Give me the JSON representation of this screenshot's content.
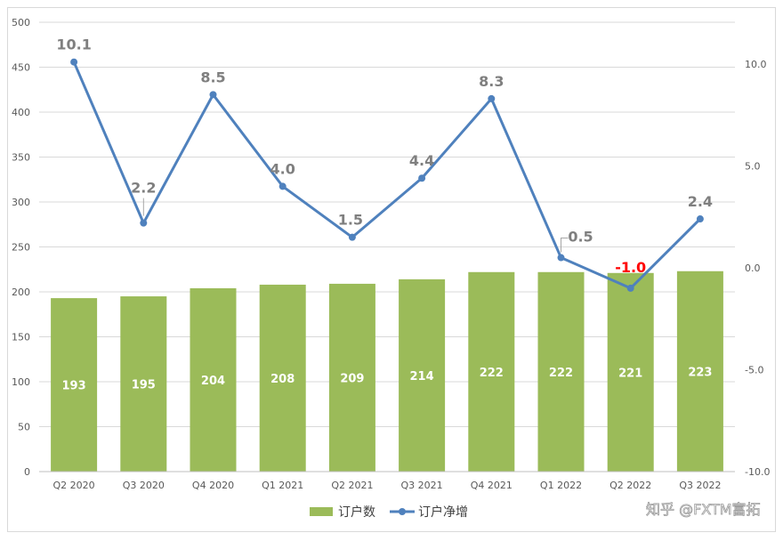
{
  "chart_data": {
    "type": "bar+line",
    "categories": [
      "Q2 2020",
      "Q3 2020",
      "Q4 2020",
      "Q1 2021",
      "Q2 2021",
      "Q3 2021",
      "Q4 2021",
      "Q1 2022",
      "Q2 2022",
      "Q3 2022"
    ],
    "series": [
      {
        "name": "订户数",
        "type": "bar",
        "axis": "left",
        "color": "#9bbb59",
        "values": [
          193,
          195,
          204,
          208,
          209,
          214,
          222,
          222,
          221,
          223
        ],
        "labels": [
          "193",
          "195",
          "204",
          "208",
          "209",
          "214",
          "222",
          "222",
          "221",
          "223"
        ]
      },
      {
        "name": "订户净增",
        "type": "line",
        "axis": "right",
        "color": "#4f81bd",
        "values": [
          10.1,
          2.2,
          8.5,
          4.0,
          1.5,
          4.4,
          8.3,
          0.5,
          -1.0,
          2.4
        ],
        "labels": [
          "10.1",
          "2.2",
          "8.5",
          "4.0",
          "1.5",
          "4.4",
          "8.3",
          "0.5",
          "-1.0",
          "2.4"
        ]
      }
    ],
    "y_left": {
      "min": 0,
      "max": 500,
      "ticks": [
        "0",
        "50",
        "100",
        "150",
        "200",
        "250",
        "300",
        "350",
        "400",
        "450",
        "500"
      ]
    },
    "y_right": {
      "min": -10,
      "max": 10,
      "ticks": [
        "-10.0",
        "-5.0",
        "0.0",
        "5.0",
        "10.0"
      ]
    },
    "grid": true,
    "legend": "bottom-center",
    "negative_label_color": "#ff0000"
  },
  "watermark": "知乎 @FXTM富拓"
}
